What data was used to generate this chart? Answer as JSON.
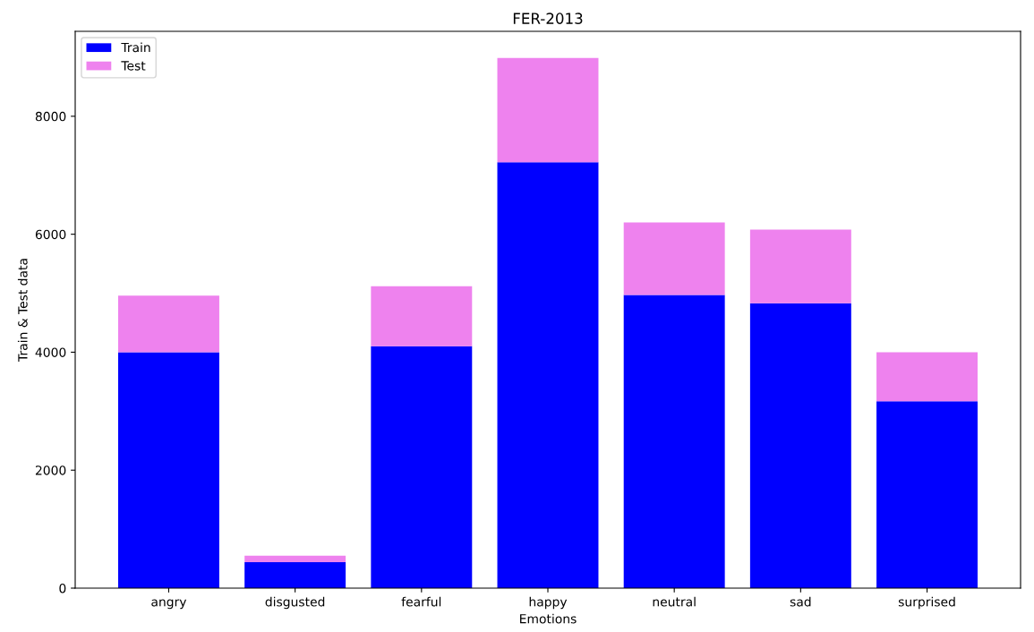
{
  "chart_data": {
    "type": "bar",
    "title": "FER-2013",
    "xlabel": "Emotions",
    "ylabel": "Train & Test data",
    "categories": [
      "angry",
      "disgusted",
      "fearful",
      "happy",
      "neutral",
      "sad",
      "surprised"
    ],
    "stacked": true,
    "series": [
      {
        "name": "Train",
        "color": "#0000ff",
        "values": [
          4000,
          440,
          4100,
          7220,
          4970,
          4830,
          3170
        ]
      },
      {
        "name": "Test",
        "color": "#ee82ee",
        "values": [
          960,
          110,
          1020,
          1770,
          1230,
          1250,
          830
        ]
      }
    ],
    "ylim": [
      0,
      9440
    ],
    "yticks": [
      0,
      2000,
      4000,
      6000,
      8000
    ],
    "grid": false,
    "legend": "top left"
  }
}
